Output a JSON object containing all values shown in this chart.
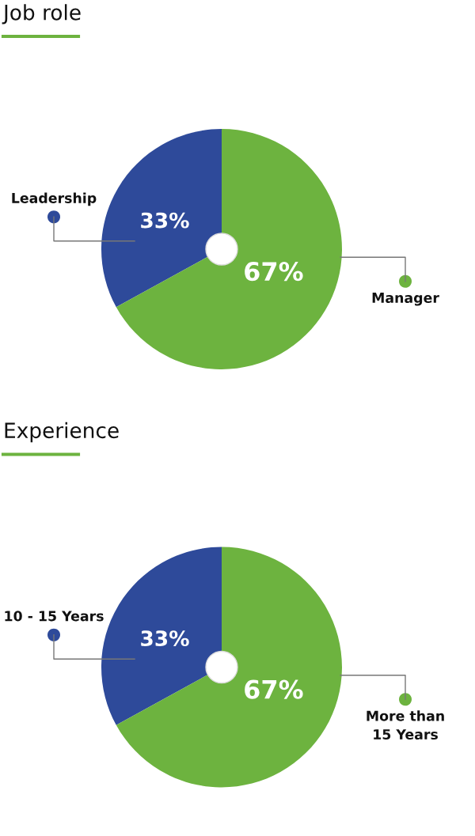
{
  "chart_data": [
    {
      "type": "pie",
      "title": "Job role",
      "categories": [
        "Leadership",
        "Manager"
      ],
      "values": [
        33,
        67
      ],
      "colors": [
        "#2e4a9a",
        "#6db33f"
      ],
      "value_labels": [
        "33%",
        "67%"
      ]
    },
    {
      "type": "pie",
      "title": "Experience",
      "categories": [
        "10 - 15 Years",
        "More than\n15 Years"
      ],
      "values": [
        33,
        67
      ],
      "colors": [
        "#2e4a9a",
        "#6db33f"
      ],
      "value_labels": [
        "33%",
        "67%"
      ]
    }
  ]
}
